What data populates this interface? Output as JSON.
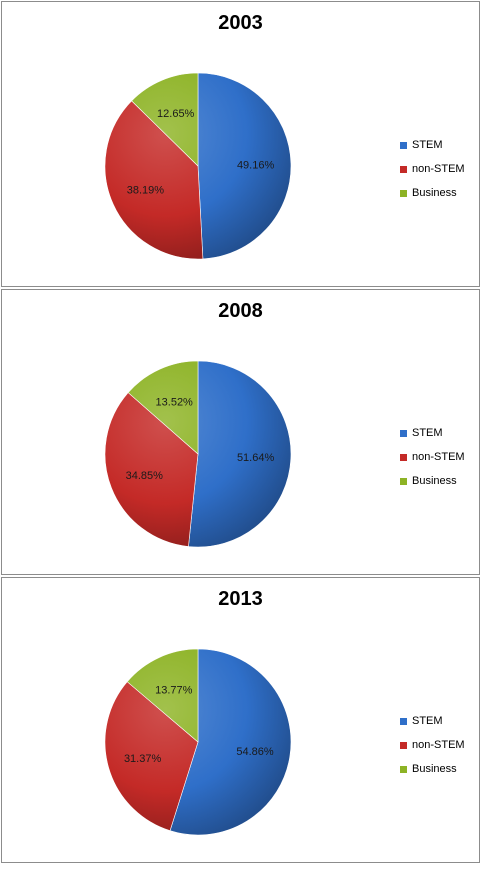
{
  "chart_data": [
    {
      "type": "pie",
      "title": "2003",
      "categories": [
        "STEM",
        "non-STEM",
        "Business"
      ],
      "values": [
        49.16,
        38.19,
        12.65
      ],
      "data_labels": [
        "49.16%",
        "38.19%",
        "12.65%"
      ],
      "legend_position": "right",
      "colors": [
        "#2f6fc9",
        "#c42a27",
        "#8db325"
      ]
    },
    {
      "type": "pie",
      "title": "2008",
      "categories": [
        "STEM",
        "non-STEM",
        "Business"
      ],
      "values": [
        51.64,
        34.85,
        13.52
      ],
      "data_labels": [
        "51.64%",
        "34.85%",
        "13.52%"
      ],
      "legend_position": "right",
      "colors": [
        "#2f6fc9",
        "#c42a27",
        "#8db325"
      ]
    },
    {
      "type": "pie",
      "title": "2013",
      "categories": [
        "STEM",
        "non-STEM",
        "Business"
      ],
      "values": [
        54.86,
        31.37,
        13.77
      ],
      "data_labels": [
        "54.86%",
        "31.37%",
        "13.77%"
      ],
      "legend_position": "right",
      "colors": [
        "#2f6fc9",
        "#c42a27",
        "#8db325"
      ]
    }
  ]
}
